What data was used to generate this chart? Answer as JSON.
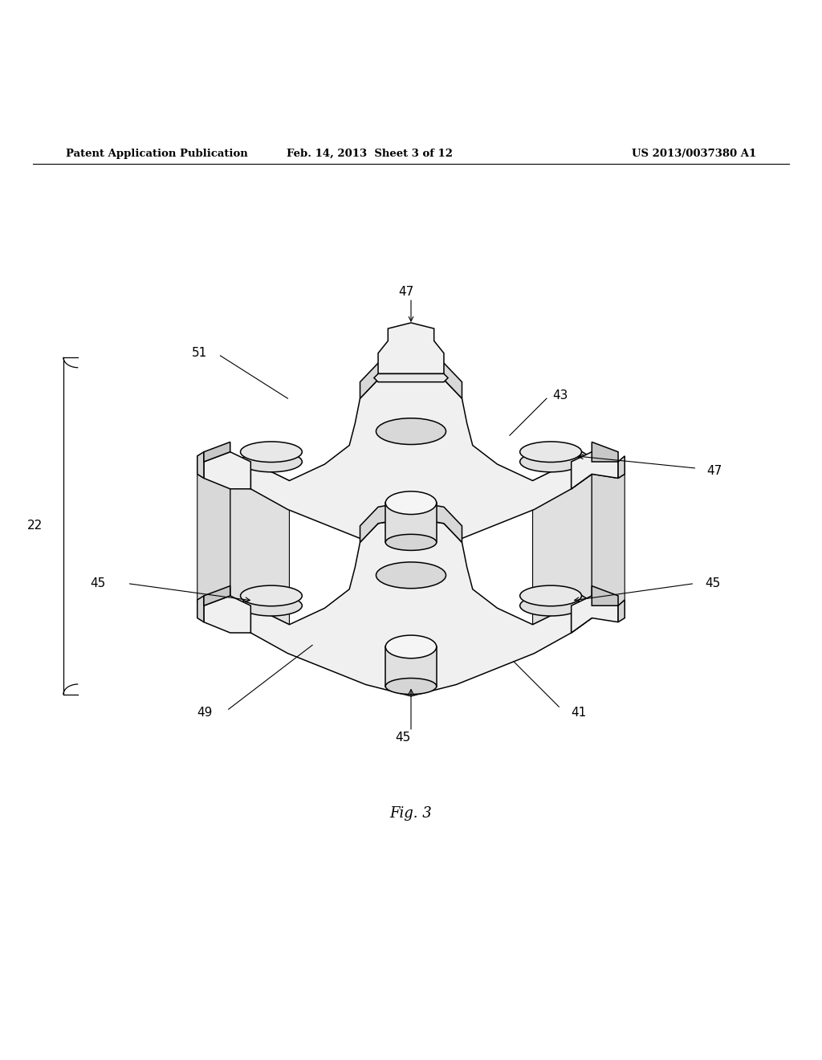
{
  "bg_color": "#ffffff",
  "header_left": "Patent Application Publication",
  "header_center": "Feb. 14, 2013  Sheet 3 of 12",
  "header_right": "US 2013/0037380 A1",
  "fig_label": "Fig. 3",
  "font_size_header": 9.5,
  "font_size_label": 11,
  "font_size_fig": 13
}
